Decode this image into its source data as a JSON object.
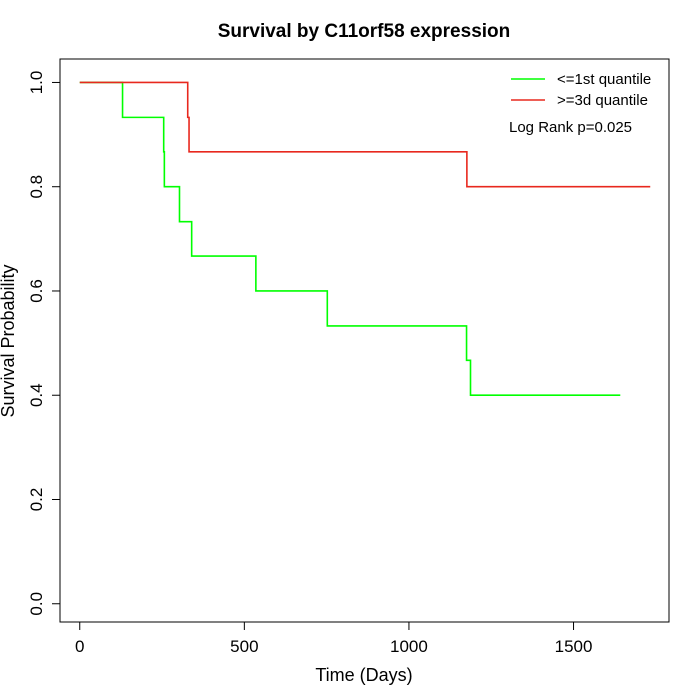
{
  "chart_data": {
    "type": "line",
    "step": true,
    "title": "Survival by C11orf58 expression",
    "xlabel": "Time (Days)",
    "ylabel": "Survival Probability",
    "xlim": [
      -60,
      1790
    ],
    "ylim": [
      -0.035,
      1.045
    ],
    "xticks": [
      0,
      500,
      1000,
      1500
    ],
    "yticks": [
      0.0,
      0.2,
      0.4,
      0.6,
      0.8,
      1.0
    ],
    "xtick_labels": [
      "0",
      "500",
      "1000",
      "1500"
    ],
    "ytick_labels": [
      "0.0",
      "0.2",
      "0.4",
      "0.6",
      "0.8",
      "1.0"
    ],
    "grid": false,
    "legend_position": "top-right",
    "annotation": "Log Rank p=0.025",
    "series": [
      {
        "name": "<=1st quantile",
        "color": "#00ff00",
        "points": [
          [
            0,
            1.0
          ],
          [
            130,
            0.933
          ],
          [
            255,
            0.867
          ],
          [
            257,
            0.8
          ],
          [
            303,
            0.733
          ],
          [
            340,
            0.667
          ],
          [
            535,
            0.6
          ],
          [
            752,
            0.533
          ],
          [
            1175,
            0.467
          ],
          [
            1187,
            0.4
          ],
          [
            1642,
            0.4
          ]
        ]
      },
      {
        "name": ">=3d quantile",
        "color": "#e8281e",
        "points": [
          [
            0,
            1.0
          ],
          [
            328,
            0.933
          ],
          [
            332,
            0.867
          ],
          [
            1176,
            0.8
          ],
          [
            1733,
            0.8
          ]
        ]
      }
    ]
  }
}
